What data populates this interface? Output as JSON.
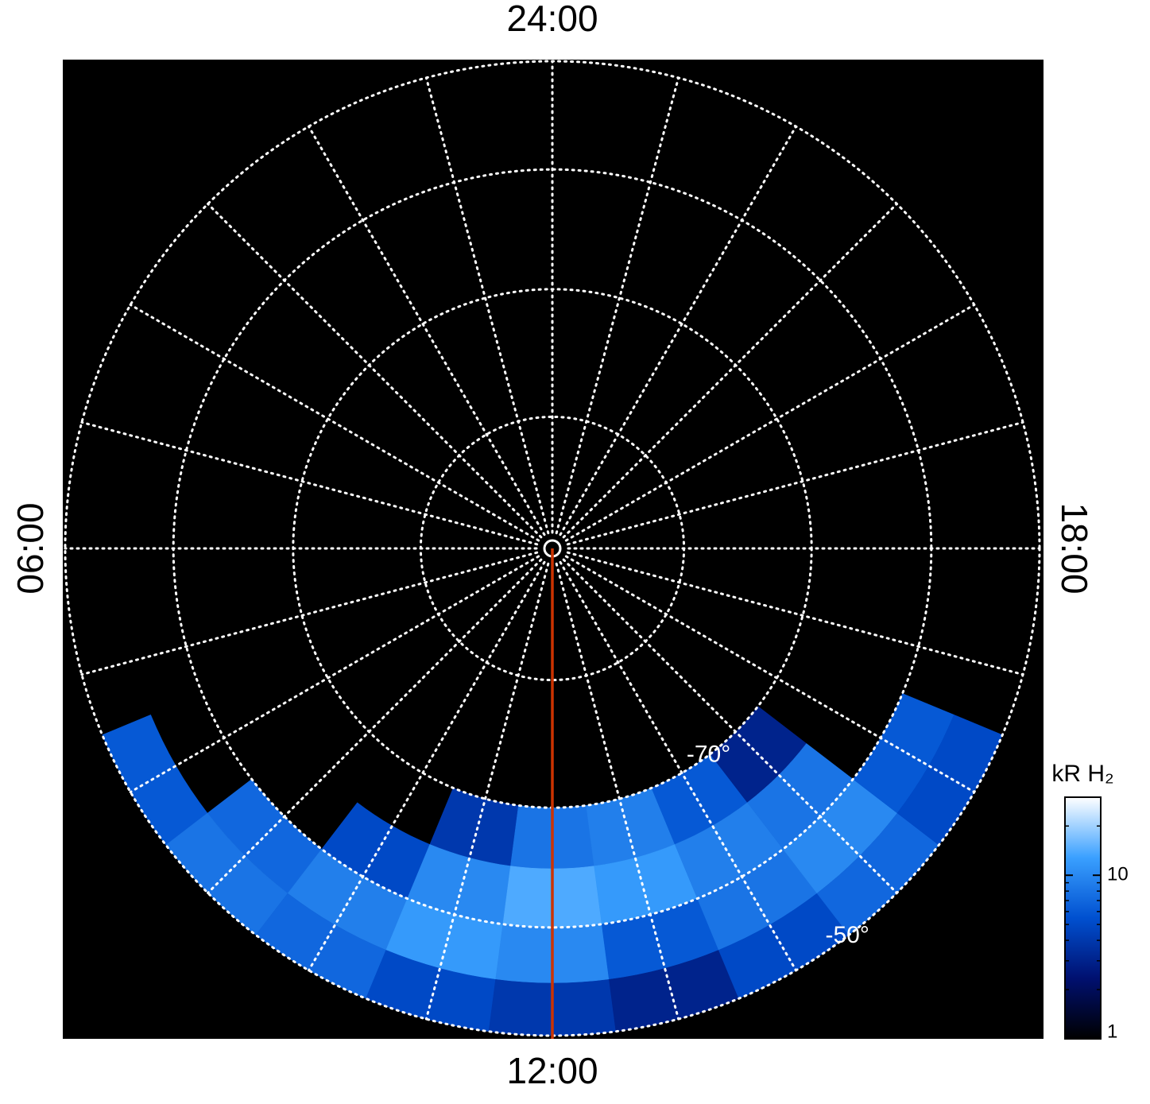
{
  "chart_data": {
    "type": "polar-map",
    "projection": "orthographic",
    "latlim": [
      -90,
      -50
    ],
    "lat_rings": [
      -80,
      -70,
      -60,
      -50
    ],
    "lat_labels": [
      {
        "value": -70,
        "label": "-70°"
      },
      {
        "value": -50,
        "label": "-50°"
      }
    ],
    "lat_label_lt": 14.5,
    "meridians": [
      0,
      1,
      2,
      3,
      4,
      5,
      6,
      7,
      8,
      9,
      10,
      11,
      12,
      13,
      14,
      15,
      16,
      17,
      18,
      19,
      20,
      21,
      22,
      23
    ],
    "lt_labels": [
      {
        "value": 0,
        "label": "24:00"
      },
      {
        "value": 6,
        "label": "06:00"
      },
      {
        "value": 12,
        "label": "12:00"
      },
      {
        "value": 18,
        "label": "18:00"
      }
    ],
    "highlight_lt": 12,
    "highlight_color": "#cc3300",
    "lt_edges": [
      7.5,
      8.5,
      9.5,
      10.5,
      11.5,
      12.5,
      13.5,
      14.5,
      15.5,
      16.5
    ],
    "lat_edges": [
      -70,
      -65,
      -60,
      -55,
      -50
    ],
    "intensity": [
      [
        null,
        null,
        null,
        4,
        8,
        9,
        6,
        3,
        null
      ],
      [
        null,
        null,
        5,
        10,
        14,
        12,
        9,
        8,
        null
      ],
      [
        null,
        7,
        9,
        12,
        10,
        6,
        8,
        10,
        6
      ],
      [
        6,
        8,
        7,
        5,
        4,
        3,
        5,
        7,
        5
      ]
    ],
    "colorbar": {
      "label": "kR H₂",
      "scale": "log",
      "lim": [
        1,
        30
      ],
      "ticks": [
        1,
        10
      ],
      "minor_ticks": [
        2,
        3,
        4,
        5,
        6,
        7,
        8,
        9,
        20
      ],
      "colormap": [
        "#000000",
        "#001070",
        "#0050d0",
        "#3aa0ff",
        "#ffffff"
      ]
    }
  }
}
